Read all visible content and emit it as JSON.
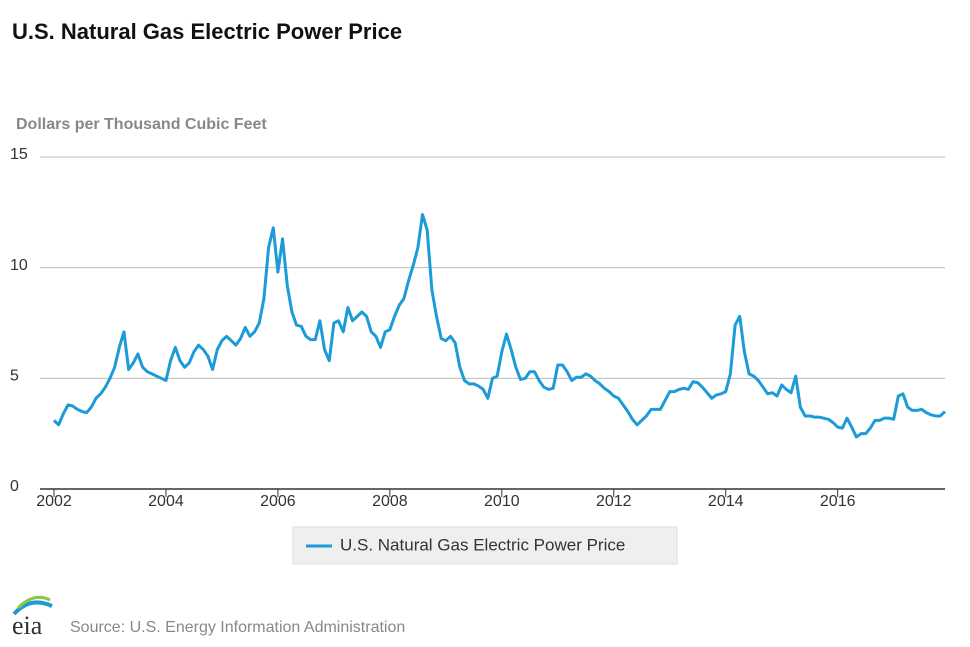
{
  "chart_data": {
    "type": "line",
    "title": "U.S. Natural Gas Electric Power Price",
    "y_label": "Dollars per Thousand Cubic Feet",
    "source": "Source: U.S. Energy Information Administration",
    "logo": "eia",
    "legend": "bottom",
    "grid": true,
    "xlim": [
      2001.75,
      2017.917
    ],
    "xticks": [
      2002,
      2004,
      2006,
      2008,
      2010,
      2012,
      2014,
      2016
    ],
    "ylim": [
      0,
      15
    ],
    "yticks": [
      0,
      5,
      10,
      15
    ],
    "x": [
      2002.0,
      2002.083,
      2002.167,
      2002.25,
      2002.333,
      2002.417,
      2002.5,
      2002.583,
      2002.667,
      2002.75,
      2002.833,
      2002.917,
      2003.0,
      2003.083,
      2003.167,
      2003.25,
      2003.333,
      2003.417,
      2003.5,
      2003.583,
      2003.667,
      2003.75,
      2003.833,
      2003.917,
      2004.0,
      2004.083,
      2004.167,
      2004.25,
      2004.333,
      2004.417,
      2004.5,
      2004.583,
      2004.667,
      2004.75,
      2004.833,
      2004.917,
      2005.0,
      2005.083,
      2005.167,
      2005.25,
      2005.333,
      2005.417,
      2005.5,
      2005.583,
      2005.667,
      2005.75,
      2005.833,
      2005.917,
      2006.0,
      2006.083,
      2006.167,
      2006.25,
      2006.333,
      2006.417,
      2006.5,
      2006.583,
      2006.667,
      2006.75,
      2006.833,
      2006.917,
      2007.0,
      2007.083,
      2007.167,
      2007.25,
      2007.333,
      2007.417,
      2007.5,
      2007.583,
      2007.667,
      2007.75,
      2007.833,
      2007.917,
      2008.0,
      2008.083,
      2008.167,
      2008.25,
      2008.333,
      2008.417,
      2008.5,
      2008.583,
      2008.667,
      2008.75,
      2008.833,
      2008.917,
      2009.0,
      2009.083,
      2009.167,
      2009.25,
      2009.333,
      2009.417,
      2009.5,
      2009.583,
      2009.667,
      2009.75,
      2009.833,
      2009.917,
      2010.0,
      2010.083,
      2010.167,
      2010.25,
      2010.333,
      2010.417,
      2010.5,
      2010.583,
      2010.667,
      2010.75,
      2010.833,
      2010.917,
      2011.0,
      2011.083,
      2011.167,
      2011.25,
      2011.333,
      2011.417,
      2011.5,
      2011.583,
      2011.667,
      2011.75,
      2011.833,
      2011.917,
      2012.0,
      2012.083,
      2012.167,
      2012.25,
      2012.333,
      2012.417,
      2012.5,
      2012.583,
      2012.667,
      2012.75,
      2012.833,
      2012.917,
      2013.0,
      2013.083,
      2013.167,
      2013.25,
      2013.333,
      2013.417,
      2013.5,
      2013.583,
      2013.667,
      2013.75,
      2013.833,
      2013.917,
      2014.0,
      2014.083,
      2014.167,
      2014.25,
      2014.333,
      2014.417,
      2014.5,
      2014.583,
      2014.667,
      2014.75,
      2014.833,
      2014.917,
      2015.0,
      2015.083,
      2015.167,
      2015.25,
      2015.333,
      2015.417,
      2015.5,
      2015.583,
      2015.667,
      2015.75,
      2015.833,
      2015.917,
      2016.0,
      2016.083,
      2016.167,
      2016.25,
      2016.333,
      2016.417,
      2016.5,
      2016.583,
      2016.667,
      2016.75,
      2016.833,
      2016.917,
      2017.0,
      2017.083,
      2017.167,
      2017.25,
      2017.333,
      2017.417,
      2017.5,
      2017.583,
      2017.667,
      2017.75,
      2017.833,
      2017.917
    ],
    "series": [
      {
        "name": "U.S. Natural Gas Electric Power Price",
        "color": "#1b9bd7",
        "values": [
          3.1,
          2.9,
          3.4,
          3.8,
          3.75,
          3.6,
          3.5,
          3.45,
          3.7,
          4.1,
          4.3,
          4.6,
          5.0,
          5.5,
          6.4,
          7.1,
          5.4,
          5.7,
          6.1,
          5.5,
          5.3,
          5.2,
          5.1,
          5.0,
          4.9,
          5.8,
          6.4,
          5.8,
          5.5,
          5.7,
          6.2,
          6.5,
          6.3,
          6.0,
          5.4,
          6.3,
          6.7,
          6.9,
          6.7,
          6.5,
          6.8,
          7.3,
          6.9,
          7.1,
          7.5,
          8.6,
          10.9,
          11.8,
          9.8,
          11.3,
          9.2,
          8.0,
          7.4,
          7.35,
          6.9,
          6.75,
          6.75,
          7.6,
          6.3,
          5.8,
          7.5,
          7.6,
          7.1,
          8.2,
          7.6,
          7.8,
          8.0,
          7.8,
          7.1,
          6.9,
          6.4,
          7.1,
          7.2,
          7.8,
          8.3,
          8.6,
          9.4,
          10.1,
          10.9,
          12.4,
          11.7,
          9.0,
          7.8,
          6.8,
          6.7,
          6.9,
          6.6,
          5.5,
          4.9,
          4.75,
          4.75,
          4.65,
          4.5,
          4.1,
          5.0,
          5.1,
          6.2,
          7.0,
          6.3,
          5.5,
          4.95,
          5.0,
          5.3,
          5.3,
          4.9,
          4.6,
          4.5,
          4.55,
          5.6,
          5.6,
          5.3,
          4.9,
          5.05,
          5.05,
          5.2,
          5.1,
          4.9,
          4.75,
          4.55,
          4.4,
          4.2,
          4.1,
          3.8,
          3.5,
          3.15,
          2.9,
          3.1,
          3.3,
          3.6,
          3.6,
          3.6,
          4.0,
          4.4,
          4.4,
          4.5,
          4.55,
          4.5,
          4.85,
          4.8,
          4.6,
          4.35,
          4.1,
          4.25,
          4.3,
          4.4,
          5.2,
          7.4,
          7.8,
          6.2,
          5.2,
          5.1,
          4.9,
          4.6,
          4.3,
          4.35,
          4.2,
          4.7,
          4.5,
          4.35,
          5.1,
          3.7,
          3.3,
          3.3,
          3.25,
          3.25,
          3.2,
          3.15,
          3.0,
          2.8,
          2.75,
          3.2,
          2.8,
          2.35,
          2.5,
          2.5,
          2.75,
          3.1,
          3.1,
          3.2,
          3.2,
          3.15,
          4.2,
          4.3,
          3.7,
          3.55,
          3.55,
          3.6,
          3.45,
          3.35,
          3.3,
          3.3,
          3.5
        ]
      }
    ]
  }
}
